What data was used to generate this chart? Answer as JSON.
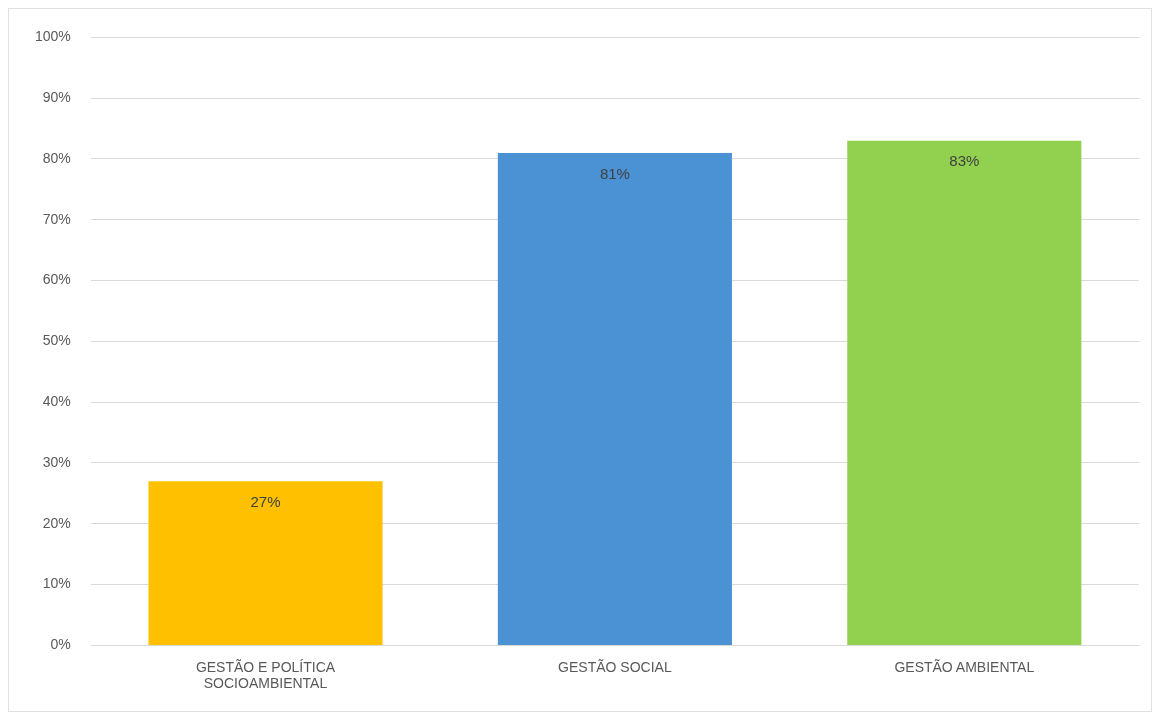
{
  "chart_data": {
    "type": "bar",
    "categories": [
      "GESTÃO E POLÍTICA SOCIOAMBIENTAL",
      "GESTÃO SOCIAL",
      "GESTÃO AMBIENTAL"
    ],
    "values": [
      27,
      81,
      83
    ],
    "colors": [
      "#ffc000",
      "#4b92d4",
      "#92d050"
    ],
    "value_labels": [
      "27%",
      "81%",
      "83%"
    ],
    "ylim": [
      0,
      100
    ],
    "yticks": [
      {
        "value": 0,
        "label": "0%"
      },
      {
        "value": 10,
        "label": "10%"
      },
      {
        "value": 20,
        "label": "20%"
      },
      {
        "value": 30,
        "label": "30%"
      },
      {
        "value": 40,
        "label": "40%"
      },
      {
        "value": 50,
        "label": "50%"
      },
      {
        "value": 60,
        "label": "60%"
      },
      {
        "value": 70,
        "label": "70%"
      },
      {
        "value": 80,
        "label": "80%"
      },
      {
        "value": 90,
        "label": "90%"
      },
      {
        "value": 100,
        "label": "100%"
      }
    ],
    "grid": "y",
    "legend": false
  }
}
